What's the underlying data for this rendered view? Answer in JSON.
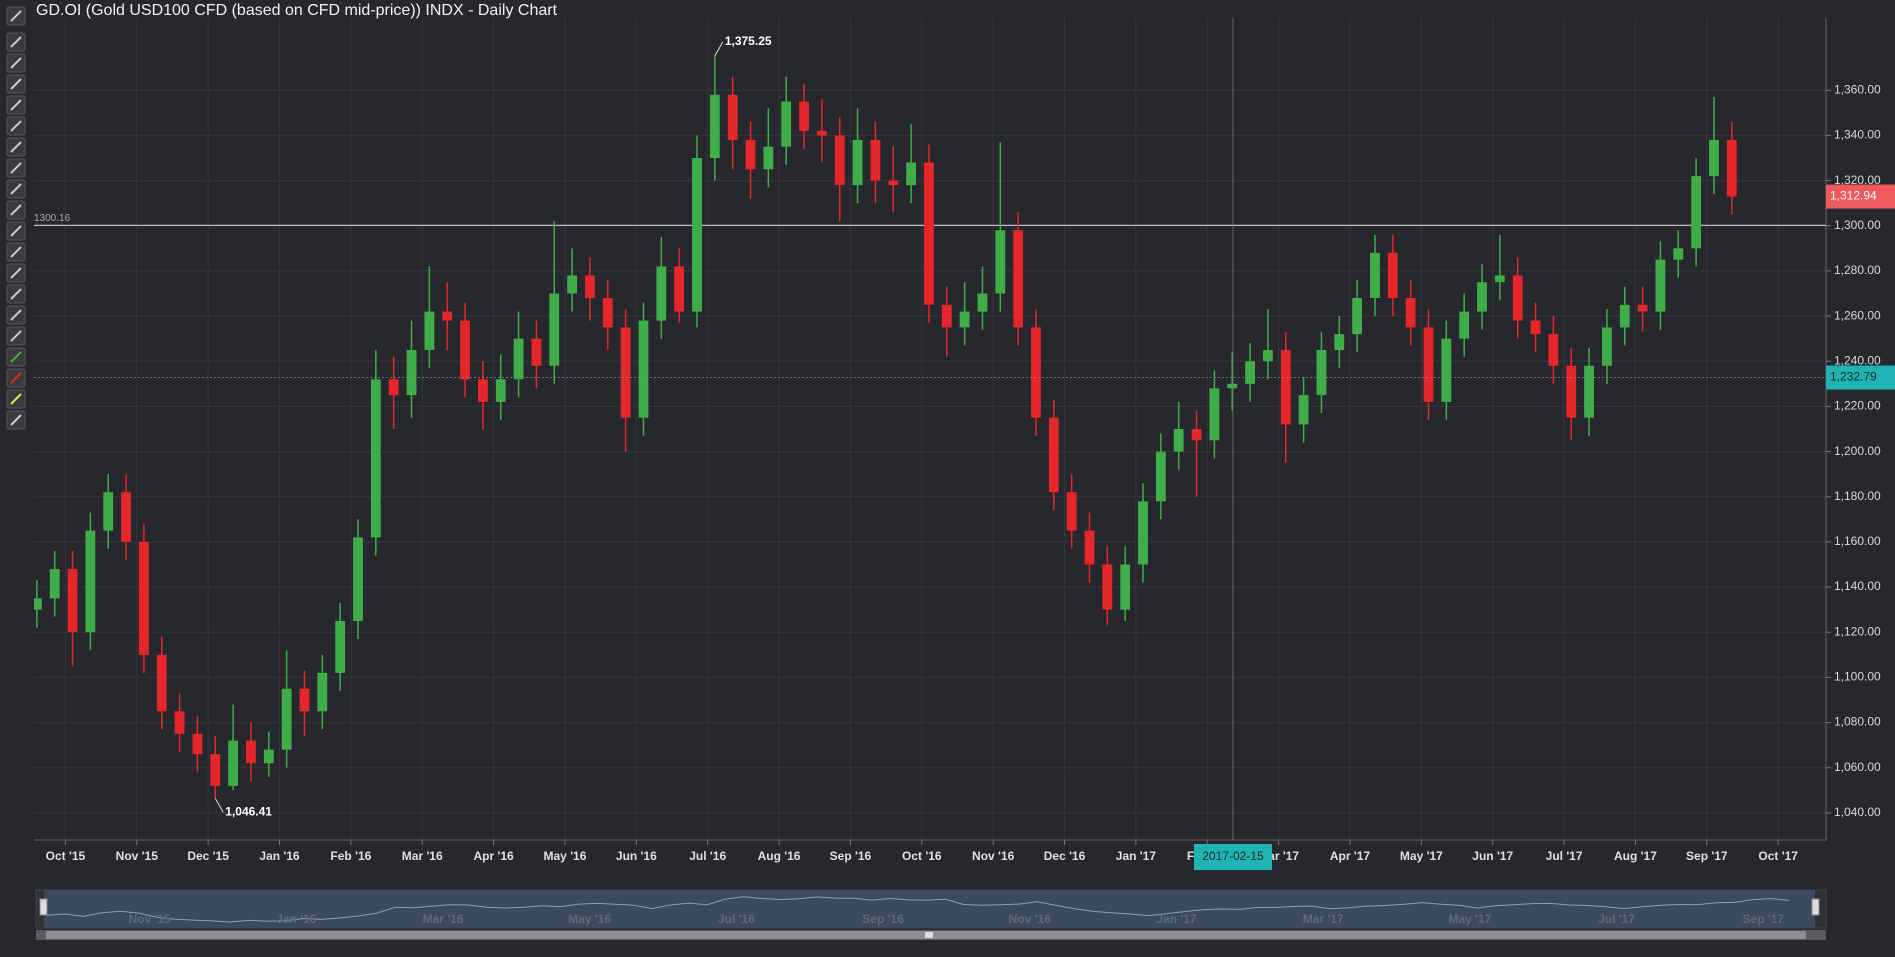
{
  "chart_data": {
    "type": "candlestick",
    "title": "GD.OI (Gold USD100 CFD (based on CFD mid-price)) INDX - Daily Chart",
    "up_color": "#3fae49",
    "down_color": "#e5262a",
    "grid": true,
    "x": [
      -0.4,
      -0.15,
      0.1,
      0.35,
      0.6,
      0.85,
      1.1,
      1.35,
      1.6,
      1.85,
      2.1,
      2.35,
      2.6,
      2.85,
      3.1,
      3.35,
      3.6,
      3.85,
      4.1,
      4.35,
      4.6,
      4.85,
      5.1,
      5.35,
      5.6,
      5.85,
      6.1,
      6.35,
      6.6,
      6.85,
      7.1,
      7.35,
      7.6,
      7.85,
      8.1,
      8.35,
      8.6,
      8.85,
      9.1,
      9.35,
      9.6,
      9.85,
      10.1,
      10.35,
      10.6,
      10.85,
      11.1,
      11.35,
      11.6,
      11.85,
      12.1,
      12.35,
      12.6,
      12.85,
      13.1,
      13.35,
      13.6,
      13.85,
      14.1,
      14.35,
      14.6,
      14.85,
      15.1,
      15.35,
      15.6,
      15.85,
      16.1,
      16.35,
      16.6,
      16.85,
      17.1,
      17.35,
      17.6,
      17.85,
      18.1,
      18.35,
      18.6,
      18.85,
      19.1,
      19.35,
      19.6,
      19.85,
      20.1,
      20.35,
      20.6,
      20.85,
      21.1,
      21.35,
      21.6,
      21.85,
      22.1,
      22.35,
      22.6,
      22.85,
      23.1,
      23.35
    ],
    "open": [
      1130,
      1135,
      1148,
      1120,
      1165,
      1182,
      1160,
      1110,
      1085,
      1075,
      1066,
      1052,
      1072,
      1062,
      1068,
      1095,
      1085,
      1102,
      1125,
      1162,
      1232,
      1225,
      1245,
      1262,
      1258,
      1232,
      1222,
      1232,
      1250,
      1238,
      1270,
      1278,
      1268,
      1255,
      1215,
      1258,
      1282,
      1262,
      1330,
      1358,
      1338,
      1325,
      1335,
      1355,
      1342,
      1340,
      1318,
      1338,
      1320,
      1318,
      1328,
      1265,
      1255,
      1262,
      1270,
      1298,
      1255,
      1215,
      1182,
      1165,
      1150,
      1130,
      1150,
      1178,
      1200,
      1210,
      1205,
      1228,
      1230,
      1240,
      1245,
      1212,
      1225,
      1245,
      1252,
      1268,
      1288,
      1268,
      1255,
      1222,
      1250,
      1262,
      1275,
      1278,
      1258,
      1252,
      1238,
      1215,
      1238,
      1255,
      1265,
      1262,
      1285,
      1290,
      1322,
      1338
    ],
    "high": [
      1143,
      1156,
      1156,
      1173,
      1190,
      1190,
      1168,
      1118,
      1093,
      1083,
      1074,
      1088,
      1080,
      1076,
      1112,
      1103,
      1110,
      1133,
      1170,
      1245,
      1242,
      1258,
      1282,
      1275,
      1266,
      1240,
      1243,
      1262,
      1258,
      1302,
      1290,
      1286,
      1276,
      1263,
      1266,
      1295,
      1290,
      1340,
      1375.25,
      1366,
      1346,
      1352,
      1366,
      1363,
      1356,
      1348,
      1352,
      1346,
      1335,
      1345,
      1336,
      1273,
      1275,
      1282,
      1337,
      1306,
      1263,
      1223,
      1190,
      1173,
      1158,
      1158,
      1186,
      1208,
      1222,
      1218,
      1236,
      1244,
      1248,
      1263,
      1253,
      1233,
      1253,
      1260,
      1276,
      1296,
      1296,
      1276,
      1263,
      1258,
      1270,
      1283,
      1296,
      1286,
      1266,
      1260,
      1246,
      1246,
      1263,
      1273,
      1273,
      1293,
      1298,
      1330,
      1357,
      1346
    ],
    "low": [
      1122,
      1127,
      1105,
      1112,
      1157,
      1152,
      1102,
      1077,
      1067,
      1058,
      1046.41,
      1050,
      1054,
      1056,
      1060,
      1074,
      1077,
      1094,
      1117,
      1154,
      1210,
      1215,
      1237,
      1245,
      1224,
      1210,
      1214,
      1224,
      1228,
      1230,
      1262,
      1258,
      1245,
      1200,
      1207,
      1250,
      1257,
      1255,
      1320,
      1325,
      1312,
      1317,
      1327,
      1334,
      1328,
      1302,
      1310,
      1310,
      1306,
      1310,
      1257,
      1242,
      1247,
      1254,
      1262,
      1247,
      1207,
      1174,
      1157,
      1142,
      1123,
      1125,
      1142,
      1170,
      1192,
      1180,
      1197,
      1218,
      1222,
      1232,
      1195,
      1204,
      1217,
      1237,
      1244,
      1260,
      1260,
      1247,
      1214,
      1214,
      1242,
      1254,
      1267,
      1250,
      1244,
      1230,
      1205,
      1207,
      1230,
      1247,
      1253,
      1254,
      1277,
      1282,
      1314,
      1305
    ],
    "close": [
      1135,
      1148,
      1120,
      1165,
      1182,
      1160,
      1110,
      1085,
      1075,
      1066,
      1052,
      1072,
      1062,
      1068,
      1095,
      1085,
      1102,
      1125,
      1162,
      1232,
      1225,
      1245,
      1262,
      1258,
      1232,
      1222,
      1232,
      1250,
      1238,
      1270,
      1278,
      1268,
      1255,
      1215,
      1258,
      1282,
      1262,
      1330,
      1358,
      1338,
      1325,
      1335,
      1355,
      1342,
      1340,
      1318,
      1338,
      1320,
      1318,
      1328,
      1265,
      1255,
      1262,
      1270,
      1298,
      1255,
      1215,
      1182,
      1165,
      1150,
      1130,
      1150,
      1178,
      1200,
      1210,
      1205,
      1228,
      1230,
      1240,
      1245,
      1212,
      1225,
      1245,
      1252,
      1268,
      1288,
      1268,
      1255,
      1222,
      1250,
      1262,
      1275,
      1278,
      1258,
      1252,
      1238,
      1215,
      1238,
      1255,
      1265,
      1262,
      1285,
      1290,
      1322,
      1338,
      1312.94
    ],
    "xlim": [
      -0.44,
      24.67
    ],
    "xticks": [
      {
        "value": 0,
        "label": "Oct '15"
      },
      {
        "value": 1,
        "label": "Nov '15"
      },
      {
        "value": 2,
        "label": "Dec '15"
      },
      {
        "value": 3,
        "label": "Jan '16"
      },
      {
        "value": 4,
        "label": "Feb '16"
      },
      {
        "value": 5,
        "label": "Mar '16"
      },
      {
        "value": 6,
        "label": "Apr '16"
      },
      {
        "value": 7,
        "label": "May '16"
      },
      {
        "value": 8,
        "label": "Jun '16"
      },
      {
        "value": 9,
        "label": "Jul '16"
      },
      {
        "value": 10,
        "label": "Aug '16"
      },
      {
        "value": 11,
        "label": "Sep '16"
      },
      {
        "value": 12,
        "label": "Oct '16"
      },
      {
        "value": 13,
        "label": "Nov '16"
      },
      {
        "value": 14,
        "label": "Dec '16"
      },
      {
        "value": 15,
        "label": "Jan '17"
      },
      {
        "value": 16,
        "label": "Feb '17"
      },
      {
        "value": 17,
        "label": "Mar '17"
      },
      {
        "value": 18,
        "label": "Apr '17"
      },
      {
        "value": 19,
        "label": "May '17"
      },
      {
        "value": 20,
        "label": "Jun '17"
      },
      {
        "value": 21,
        "label": "Jul '17"
      },
      {
        "value": 22,
        "label": "Aug '17"
      },
      {
        "value": 23,
        "label": "Sep '17"
      },
      {
        "value": 24,
        "label": "Oct '17"
      }
    ],
    "ylim": [
      1028,
      1392
    ],
    "yticks": [
      {
        "value": 1040,
        "label": "1,040.00"
      },
      {
        "value": 1060,
        "label": "1,060.00"
      },
      {
        "value": 1080,
        "label": "1,080.00"
      },
      {
        "value": 1100,
        "label": "1,100.00"
      },
      {
        "value": 1120,
        "label": "1,120.00"
      },
      {
        "value": 1140,
        "label": "1,140.00"
      },
      {
        "value": 1160,
        "label": "1,160.00"
      },
      {
        "value": 1180,
        "label": "1,180.00"
      },
      {
        "value": 1200,
        "label": "1,200.00"
      },
      {
        "value": 1220,
        "label": "1,220.00"
      },
      {
        "value": 1240,
        "label": "1,240.00"
      },
      {
        "value": 1260,
        "label": "1,260.00"
      },
      {
        "value": 1280,
        "label": "1,280.00"
      },
      {
        "value": 1300,
        "label": "1,300.00"
      },
      {
        "value": 1320,
        "label": "1,320.00"
      },
      {
        "value": 1340,
        "label": "1,340.00"
      },
      {
        "value": 1360,
        "label": "1,360.00"
      }
    ],
    "reference_line": {
      "value": 1300.16
    },
    "last_price": {
      "value": 1312.94,
      "label": "1,312.94",
      "color": "#f0595c"
    },
    "crosshair": {
      "x": 16.36,
      "x_label": "2017-02-15",
      "y": 1232.79,
      "y_label": "1,232.79",
      "color": "#1fb3b3"
    },
    "annotations": [
      {
        "value": 1375.25,
        "label": "1,375.25"
      },
      {
        "value": 1046.41,
        "label": "1,046.41"
      }
    ],
    "navigator": {
      "xticks": [
        {
          "value": 1,
          "label": "Nov '15"
        },
        {
          "value": 3,
          "label": "Jan '16"
        },
        {
          "value": 5,
          "label": "Mar '16"
        },
        {
          "value": 7,
          "label": "May '16"
        },
        {
          "value": 9,
          "label": "Jul '16"
        },
        {
          "value": 11,
          "label": "Sep '16"
        },
        {
          "value": 13,
          "label": "Nov '16"
        },
        {
          "value": 15,
          "label": "Jan '17"
        },
        {
          "value": 17,
          "label": "Mar '17"
        },
        {
          "value": 19,
          "label": "May '17"
        },
        {
          "value": 21,
          "label": "Jul '17"
        },
        {
          "value": 23,
          "label": "Sep '17"
        }
      ]
    }
  }
}
